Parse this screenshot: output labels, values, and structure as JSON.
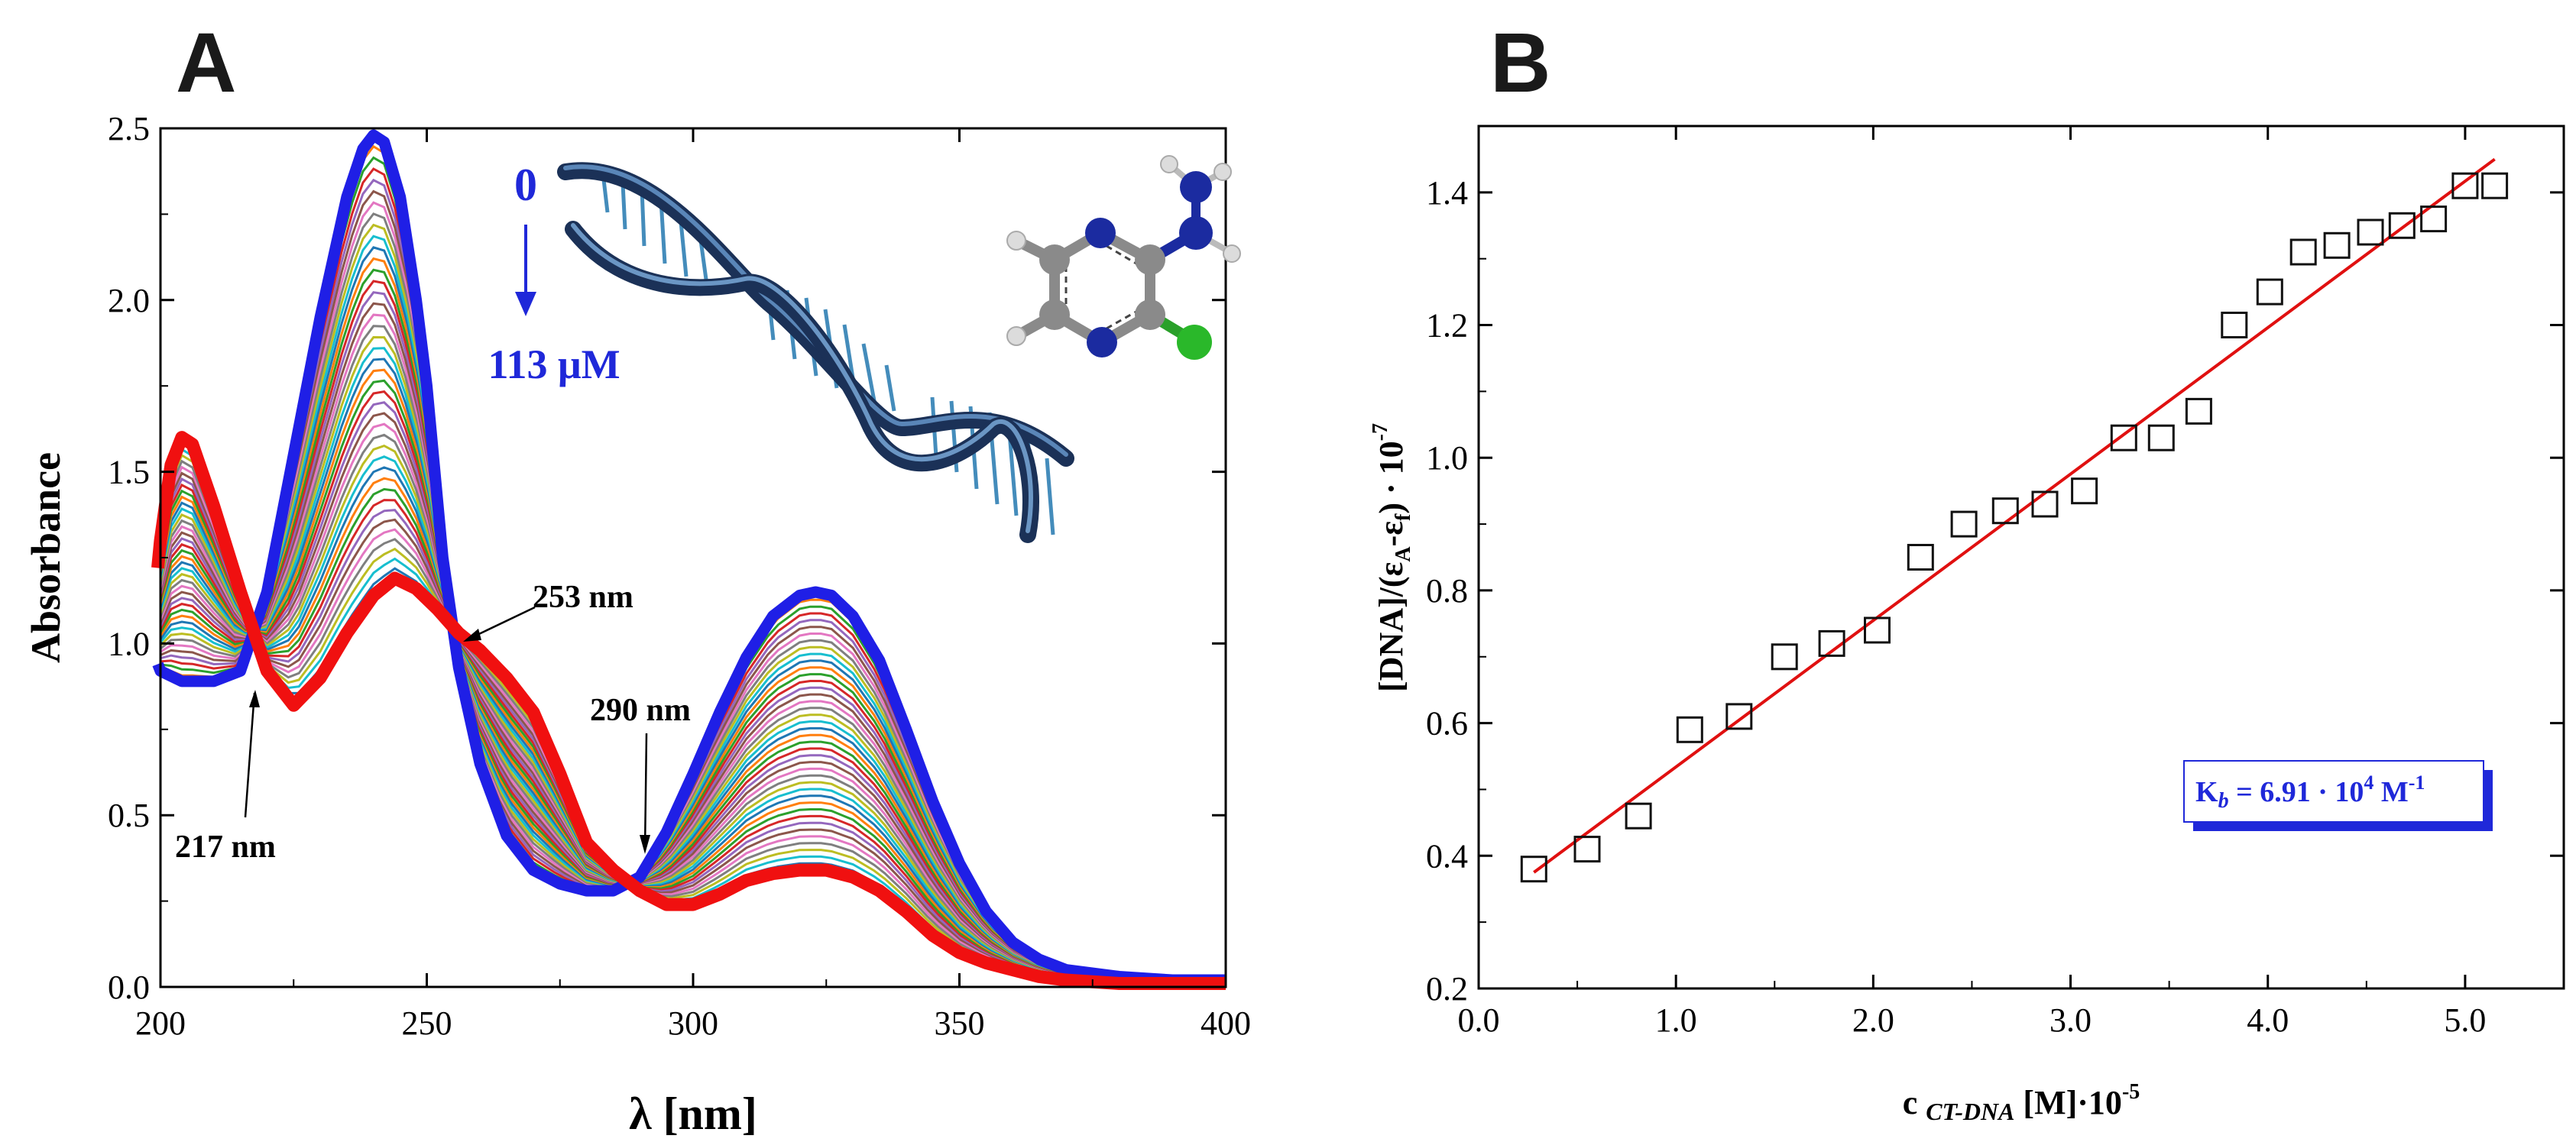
{
  "colors": {
    "first_spectrum": "#1f1fe6",
    "last_spectrum": "#f01010",
    "fit_line": "#e01010",
    "label_blue": "#1f28d9",
    "spectra_palette": [
      "#1f77b4",
      "#ff7f0e",
      "#2ca02c",
      "#d62728",
      "#9467bd",
      "#8c564b",
      "#e377c2",
      "#7f7f7f",
      "#bcbd22",
      "#17becf"
    ]
  },
  "chart_data": [
    {
      "id": "A",
      "type": "line",
      "panel_label": "A",
      "title": "",
      "xlabel": "λ [nm]",
      "ylabel": "Absorbance",
      "xlim": [
        200,
        400
      ],
      "ylim": [
        0,
        2.5
      ],
      "xticks": [
        200,
        250,
        300,
        350,
        400
      ],
      "xtick_labels": [
        "200",
        "250",
        "300",
        "350",
        "400"
      ],
      "yticks": [
        0,
        0.5,
        1.0,
        1.5,
        2.0,
        2.5
      ],
      "ytick_labels": [
        "0.0",
        "0.5",
        "1.0",
        "1.5",
        "2.0",
        "2.5"
      ],
      "n_intermediate_spectra": 40,
      "series": [
        {
          "name": "0 µM",
          "x": [
            199,
            200,
            204,
            210,
            215,
            220,
            225,
            230,
            235,
            238,
            240,
            242,
            245,
            248,
            250,
            253,
            256,
            260,
            265,
            270,
            275,
            280,
            285,
            290,
            295,
            300,
            305,
            310,
            315,
            320,
            323,
            326,
            330,
            335,
            340,
            345,
            350,
            355,
            360,
            365,
            370,
            380,
            390,
            400
          ],
          "y": [
            0.94,
            0.92,
            0.89,
            0.89,
            0.92,
            1.15,
            1.55,
            1.95,
            2.3,
            2.44,
            2.48,
            2.46,
            2.3,
            2.0,
            1.75,
            1.25,
            0.93,
            0.65,
            0.44,
            0.34,
            0.3,
            0.28,
            0.28,
            0.32,
            0.45,
            0.62,
            0.8,
            0.96,
            1.08,
            1.14,
            1.15,
            1.14,
            1.08,
            0.95,
            0.75,
            0.54,
            0.36,
            0.22,
            0.13,
            0.08,
            0.05,
            0.03,
            0.02,
            0.02
          ]
        },
        {
          "name": "113 µM",
          "x": [
            199,
            200,
            202,
            204,
            206,
            210,
            215,
            220,
            225,
            230,
            235,
            240,
            244,
            248,
            252,
            256,
            260,
            265,
            270,
            275,
            280,
            285,
            290,
            295,
            300,
            305,
            310,
            315,
            320,
            325,
            330,
            335,
            340,
            345,
            350,
            355,
            360,
            365,
            370,
            380,
            390,
            400
          ],
          "y": [
            1.22,
            1.3,
            1.52,
            1.6,
            1.58,
            1.4,
            1.15,
            0.92,
            0.82,
            0.9,
            1.03,
            1.14,
            1.19,
            1.16,
            1.1,
            1.03,
            0.98,
            0.9,
            0.8,
            0.62,
            0.42,
            0.34,
            0.28,
            0.24,
            0.24,
            0.27,
            0.31,
            0.33,
            0.34,
            0.34,
            0.32,
            0.28,
            0.22,
            0.15,
            0.1,
            0.07,
            0.05,
            0.03,
            0.02,
            0.01,
            0.01,
            0.01
          ]
        }
      ],
      "annotations": {
        "conc_start": "0",
        "conc_end": "113 μM",
        "iso1": "217 nm",
        "iso2": "253 nm",
        "iso3": "290 nm"
      }
    },
    {
      "id": "B",
      "type": "scatter",
      "panel_label": "B",
      "title": "",
      "xlabel_prefix": "c ",
      "xlabel_sub": "CT-DNA",
      "xlabel_mid": " [M]·10",
      "xlabel_exp": "-5",
      "ylabel_main": "[DNA]/(ε",
      "ylabel_sub1": "A",
      "ylabel_mid": "-ε",
      "ylabel_sub2": "f",
      "ylabel_tail": ") · 10",
      "ylabel_exp": "-7",
      "xlim": [
        0,
        5.5
      ],
      "ylim": [
        0.2,
        1.5
      ],
      "xticks": [
        0,
        1,
        2,
        3,
        4,
        5
      ],
      "xtick_labels": [
        "0.0",
        "1.0",
        "2.0",
        "3.0",
        "4.0",
        "5.0"
      ],
      "yticks": [
        0.2,
        0.4,
        0.6,
        0.8,
        1.0,
        1.2,
        1.4
      ],
      "ytick_labels": [
        "0.2",
        "0.4",
        "0.6",
        "0.8",
        "1.0",
        "1.2",
        "1.4"
      ],
      "points": {
        "x": [
          0.28,
          0.55,
          0.81,
          1.07,
          1.32,
          1.55,
          1.79,
          2.02,
          2.24,
          2.46,
          2.67,
          2.87,
          3.07,
          3.27,
          3.46,
          3.65,
          3.83,
          4.01,
          4.18,
          4.35,
          4.52,
          4.68,
          4.84,
          5.0,
          5.15
        ],
        "y": [
          0.38,
          0.41,
          0.46,
          0.59,
          0.61,
          0.7,
          0.72,
          0.74,
          0.85,
          0.9,
          0.92,
          0.93,
          0.95,
          1.03,
          1.03,
          1.07,
          1.2,
          1.25,
          1.31,
          1.32,
          1.34,
          1.35,
          1.36,
          1.41,
          1.41
        ]
      },
      "fit": {
        "x": [
          0.28,
          5.15
        ],
        "y": [
          0.375,
          1.45
        ]
      },
      "kb_symbol": "K",
      "kb_sub": "b",
      "kb_value": " = 6.91 · 10",
      "kb_exp": "4",
      "kb_unit": " M",
      "kb_unit_exp": "-1"
    }
  ]
}
